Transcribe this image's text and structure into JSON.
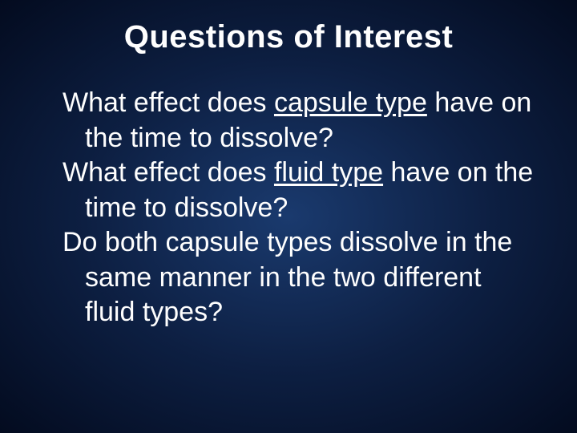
{
  "slide": {
    "title": "Questions of Interest",
    "title_fontsize": 40,
    "body_fontsize": 34,
    "q1_pre": "What effect does ",
    "q1_underlined": "capsule type",
    "q1_post": " have on the time to dissolve?",
    "q2_pre": "What effect does ",
    "q2_underlined": "fluid type",
    "q2_post": " have on the time to dissolve?",
    "q3": "Do both capsule types dissolve in the same manner in the two different fluid types?",
    "colors": {
      "text": "#fefefe",
      "bg_center": "#1a3a6e",
      "bg_mid": "#0d1f42",
      "bg_edge": "#030b1f"
    }
  }
}
